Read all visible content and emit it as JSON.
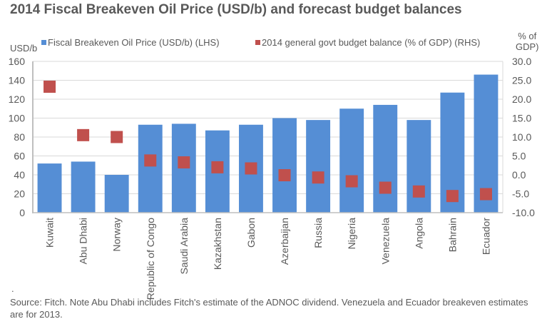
{
  "chart_data": {
    "type": "bar",
    "title": "2014 Fiscal Breakeven Oil Price (USD/b) and  forecast budget balances",
    "categories": [
      "Kuwait",
      "Abu Dhabi",
      "Norway",
      "Republic of Congo",
      "Saudi Arabia",
      "Kazakhstan",
      "Gabon",
      "Azerbaijan",
      "Russia",
      "Nigeria",
      "Venezuela",
      "Angola",
      "Bahrain",
      "Ecuador"
    ],
    "series": [
      {
        "name": "Fiscal Breakeven Oil Price (USD/b) (LHS)",
        "type": "bar",
        "axis": "left",
        "color": "#558ed5",
        "values": [
          52,
          54,
          40,
          93,
          94,
          87,
          93,
          100,
          98,
          110,
          114,
          98,
          127,
          146
        ]
      },
      {
        "name": "2014 general govt budget balance (% of GDP) (RHS)",
        "type": "marker",
        "axis": "right",
        "color": "#c0504d",
        "values": [
          23.3,
          10.5,
          10.0,
          3.8,
          3.3,
          2.0,
          1.7,
          -0.1,
          -0.7,
          -1.7,
          -3.4,
          -4.4,
          -5.6,
          -5.1
        ]
      }
    ],
    "ylabel": "USD/b",
    "ylabel_right": [
      "% of",
      "GDP)"
    ],
    "ylim": [
      0,
      160
    ],
    "ylim_right": [
      -10,
      30
    ],
    "yticks": [
      "0",
      "20",
      "40",
      "60",
      "80",
      "100",
      "120",
      "140",
      "160"
    ],
    "yticks_right": [
      "-10.0",
      "-5.0",
      "0.0",
      "5.0",
      "10.0",
      "15.0",
      "20.0",
      "25.0",
      "30.0"
    ],
    "grid": true,
    "legend_position": "top"
  },
  "footer": {
    "dot": ".",
    "source": "Source: Fitch. Note Abu Dhabi includes Fitch's estimate of  the ADNOC dividend. Venezuela  and Ecuador breakeven estimates are for 2013."
  }
}
